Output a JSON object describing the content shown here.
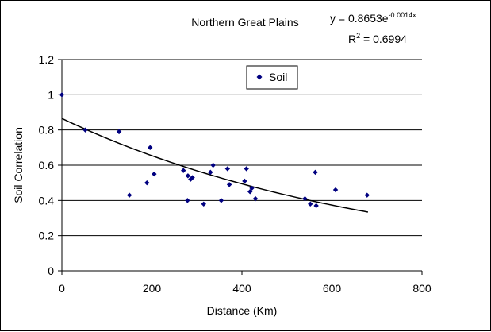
{
  "chart_data": {
    "type": "scatter",
    "title": "Northern Great Plains",
    "equation_prefix": "y = 0.8653e",
    "equation_exponent": "-0.0014x",
    "r2_prefix": "R",
    "r2_sup": "2",
    "r2_suffix": " = 0.6994",
    "xlabel": "Distance (Km)",
    "ylabel": "Soil Correlation",
    "xlim": [
      0,
      800
    ],
    "ylim": [
      0,
      1.2
    ],
    "x_ticks": [
      "0",
      "200",
      "400",
      "600",
      "800"
    ],
    "y_ticks": [
      "0",
      "0.2",
      "0.4",
      "0.6",
      "0.8",
      "1",
      "1.2"
    ],
    "grid": "horizontal",
    "legend_position": "top-center",
    "series": [
      {
        "name": "Soil",
        "color": "#000080",
        "marker": "diamond",
        "points": [
          {
            "x": 0,
            "y": 1.0
          },
          {
            "x": 52,
            "y": 0.8
          },
          {
            "x": 127,
            "y": 0.79
          },
          {
            "x": 150,
            "y": 0.43
          },
          {
            "x": 189,
            "y": 0.5
          },
          {
            "x": 196,
            "y": 0.7
          },
          {
            "x": 205,
            "y": 0.55
          },
          {
            "x": 270,
            "y": 0.57
          },
          {
            "x": 279,
            "y": 0.4
          },
          {
            "x": 280,
            "y": 0.54
          },
          {
            "x": 286,
            "y": 0.52
          },
          {
            "x": 290,
            "y": 0.53
          },
          {
            "x": 315,
            "y": 0.38
          },
          {
            "x": 330,
            "y": 0.56
          },
          {
            "x": 336,
            "y": 0.6
          },
          {
            "x": 354,
            "y": 0.4
          },
          {
            "x": 368,
            "y": 0.58
          },
          {
            "x": 372,
            "y": 0.49
          },
          {
            "x": 406,
            "y": 0.51
          },
          {
            "x": 410,
            "y": 0.58
          },
          {
            "x": 418,
            "y": 0.45
          },
          {
            "x": 422,
            "y": 0.47
          },
          {
            "x": 430,
            "y": 0.41
          },
          {
            "x": 540,
            "y": 0.41
          },
          {
            "x": 552,
            "y": 0.38
          },
          {
            "x": 563,
            "y": 0.56
          },
          {
            "x": 565,
            "y": 0.37
          },
          {
            "x": 608,
            "y": 0.46
          },
          {
            "x": 678,
            "y": 0.43
          }
        ]
      }
    ],
    "trendline": {
      "type": "exponential",
      "a": 0.8653,
      "b": -0.0014,
      "x_range": [
        0,
        680
      ],
      "color": "#000000"
    }
  }
}
